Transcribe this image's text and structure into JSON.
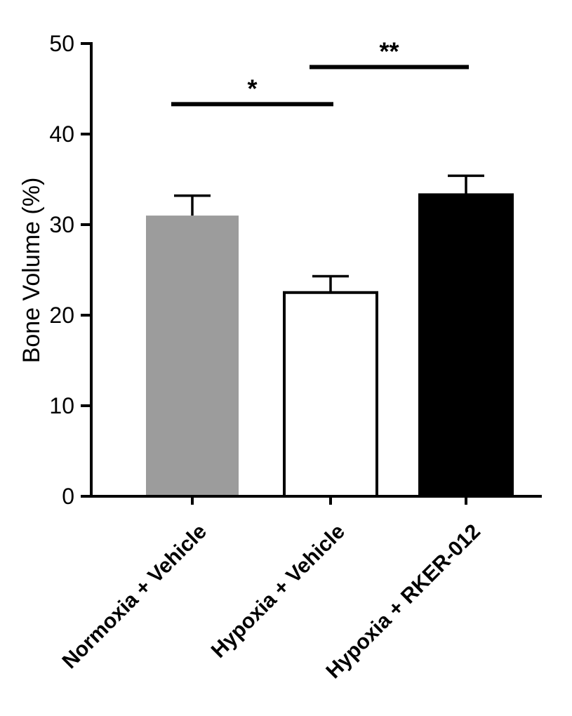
{
  "chart_data": {
    "type": "bar",
    "title": "",
    "xlabel": "",
    "ylabel": "Bone Volume (%)",
    "ylim": [
      0,
      50
    ],
    "yticks": [
      0,
      10,
      20,
      30,
      40,
      50
    ],
    "grid": false,
    "legend": false,
    "categories": [
      "Normoxia + Vehicle",
      "Hypoxia + Vehicle",
      "Hypoxia + RKER-012"
    ],
    "series": [
      {
        "name": "Bone Volume (%)",
        "values": [
          31.0,
          22.5,
          33.3
        ],
        "errors_plus": [
          2.2,
          1.8,
          2.1
        ]
      }
    ],
    "bar_styles": [
      {
        "fill": "#9c9c9c",
        "stroke": "none"
      },
      {
        "fill": "#ffffff",
        "stroke": "#000000"
      },
      {
        "fill": "#000000",
        "stroke": "#000000"
      }
    ],
    "significance": [
      {
        "from": 0,
        "to": 1,
        "label": "*",
        "height": 43.3
      },
      {
        "from": 1,
        "to": 2,
        "label": "**",
        "height": 47.4
      }
    ],
    "axis_color": "#000000",
    "error_bar_color": "#000000"
  }
}
